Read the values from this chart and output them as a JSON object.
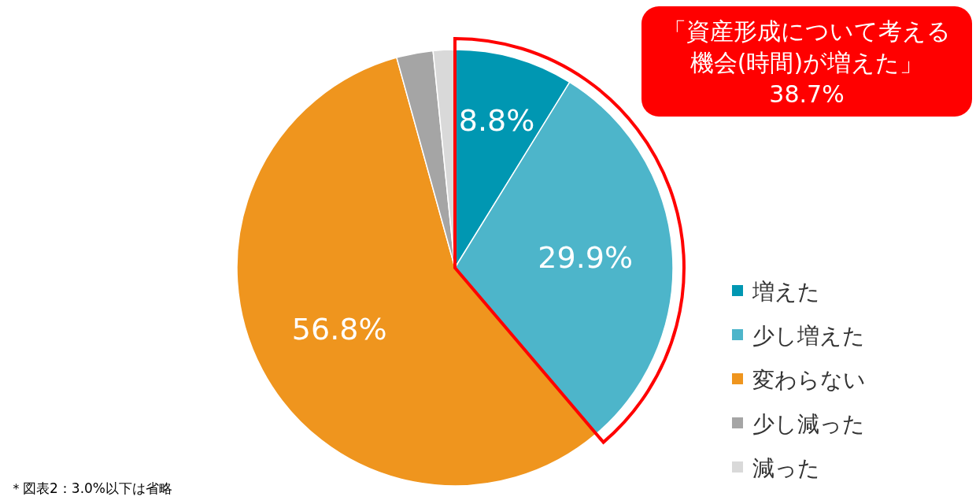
{
  "chart_data": {
    "type": "pie",
    "categories": [
      "増えた",
      "少し増えた",
      "変わらない",
      "少し減った",
      "減った"
    ],
    "values": [
      8.8,
      29.9,
      56.8,
      2.7,
      1.6
    ],
    "colors": [
      "#0097b2",
      "#4db5ca",
      "#ef951e",
      "#a5a5a5",
      "#d9d9d9"
    ],
    "value_labels": [
      "8.8%",
      "29.9%",
      "56.8%",
      null,
      null
    ],
    "legend": "right",
    "annotations": [
      "「資産形成について考える機会(時間)が増えた」38.7%",
      "＊図表2：3.0%以下は省略"
    ]
  }
}
